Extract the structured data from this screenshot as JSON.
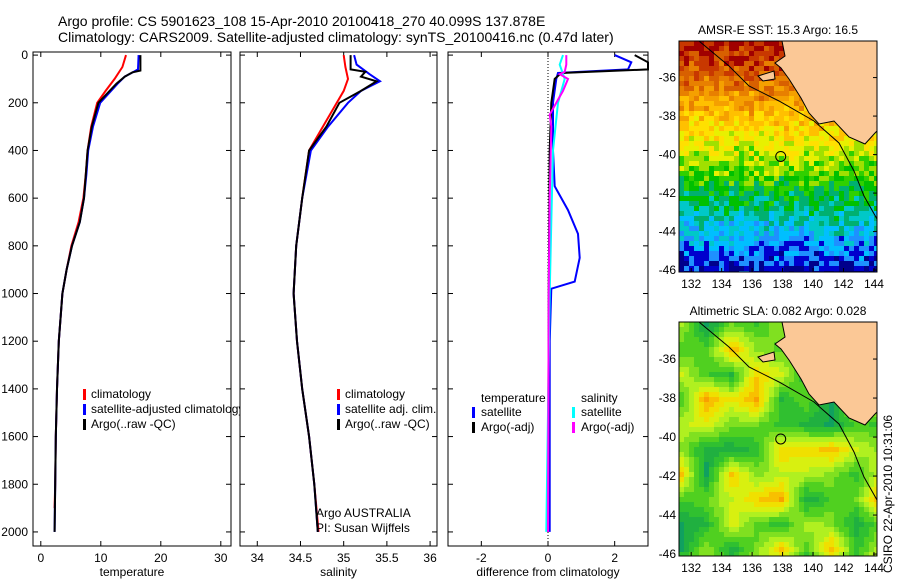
{
  "header": {
    "line1": "Argo profile: CS 5901623_108 15-Apr-2010 20100418_270 40.099S 137.878E",
    "line2": "Climatology: CARS2009. Satellite-adjusted climatology: synTS_20100416.nc (0.47d later)"
  },
  "side_label": "CSIRO 22-Apr-2010 10:31:06",
  "chart_data": [
    {
      "type": "line",
      "id": "temperature",
      "xlabel": "temperature",
      "ylabel": "pressure",
      "xlim": [
        -1.3,
        31.7
      ],
      "ylim": [
        2059,
        -13
      ],
      "y_reversed": true,
      "xticks": [
        "0",
        "10",
        "20",
        "30"
      ],
      "yticks": [
        "0",
        "200",
        "400",
        "600",
        "800",
        "1000",
        "1200",
        "1400",
        "1600",
        "1800",
        "2000"
      ],
      "legend": [
        "climatology",
        "satellite-adjusted climatology",
        "Argo(..raw -QC)"
      ],
      "series": [
        {
          "name": "climatology",
          "color": "#ff0000",
          "depth": [
            0,
            50,
            100,
            150,
            200,
            300,
            400,
            500,
            600,
            700,
            800,
            900,
            1000,
            1200,
            1400,
            1600,
            1800,
            1900
          ],
          "values": [
            14.2,
            13.6,
            12.3,
            10.8,
            9.4,
            8.4,
            7.8,
            7.5,
            7.1,
            6.3,
            5.1,
            4.3,
            3.6,
            3.0,
            2.7,
            2.5,
            2.4,
            2.3
          ]
        },
        {
          "name": "satellite-adjusted climatology",
          "color": "#0000ff",
          "depth": [
            0,
            60,
            70,
            90,
            120,
            200,
            300,
            400,
            500,
            600,
            700,
            800,
            900,
            1000,
            1200,
            1400,
            1600,
            1800,
            2000
          ],
          "values": [
            16.3,
            16.2,
            15.5,
            14.0,
            12.8,
            9.9,
            8.7,
            7.9,
            7.6,
            7.2,
            6.5,
            5.2,
            4.3,
            3.6,
            3.0,
            2.7,
            2.5,
            2.4,
            2.3
          ]
        },
        {
          "name": "Argo(..raw -QC)",
          "color": "#000000",
          "depth": [
            0,
            65,
            72,
            90,
            120,
            200,
            300,
            400,
            500,
            600,
            700,
            800,
            900,
            1000,
            1200,
            1400,
            1600,
            1800,
            2000
          ],
          "values": [
            16.6,
            16.6,
            15.3,
            14.0,
            12.6,
            9.6,
            8.5,
            7.8,
            7.5,
            7.2,
            6.5,
            5.2,
            4.3,
            3.6,
            3.0,
            2.7,
            2.5,
            2.4,
            2.3
          ]
        }
      ]
    },
    {
      "type": "line",
      "id": "salinity",
      "xlabel": "salinity",
      "xlim": [
        33.8,
        36.08
      ],
      "ylim": [
        2059,
        -13
      ],
      "y_reversed": true,
      "xticks": [
        "34",
        "34.5",
        "35",
        "35.5",
        "36"
      ],
      "legend": [
        "climatology",
        "satellite adj. clim.",
        "Argo(..raw -QC)"
      ],
      "annotation": [
        "Argo AUSTRALIA",
        "PI: Susan Wijffels"
      ],
      "series": [
        {
          "name": "climatology",
          "color": "#ff0000",
          "depth": [
            0,
            50,
            100,
            150,
            200,
            300,
            400,
            600,
            800,
            1000,
            1200,
            1400,
            1600,
            1800,
            2000
          ],
          "values": [
            35.0,
            35.02,
            35.05,
            35.0,
            34.92,
            34.76,
            34.6,
            34.52,
            34.45,
            34.42,
            34.46,
            34.52,
            34.6,
            34.66,
            34.71
          ]
        },
        {
          "name": "satellite adj. clim.",
          "color": "#0000ff",
          "depth": [
            0,
            40,
            80,
            110,
            150,
            200,
            300,
            400,
            600,
            800,
            1000,
            1200,
            1400,
            1600,
            1800,
            2000
          ],
          "values": [
            35.12,
            35.15,
            35.3,
            35.42,
            35.2,
            35.05,
            34.82,
            34.62,
            34.52,
            34.45,
            34.42,
            34.46,
            34.52,
            34.6,
            34.66,
            34.7
          ]
        },
        {
          "name": "Argo(..raw -QC)",
          "color": "#000000",
          "depth": [
            0,
            60,
            70,
            90,
            110,
            150,
            200,
            300,
            400,
            600,
            800,
            1000,
            1200,
            1400,
            1600,
            1800,
            2000
          ],
          "values": [
            35.08,
            35.08,
            35.25,
            35.2,
            35.38,
            35.2,
            34.95,
            34.8,
            34.6,
            34.52,
            34.45,
            34.42,
            34.46,
            34.52,
            34.6,
            34.66,
            34.7
          ]
        }
      ]
    },
    {
      "type": "line",
      "id": "difference",
      "xlabel": "difference from climatology",
      "xlim": [
        -3,
        3
      ],
      "ylim": [
        2059,
        -13
      ],
      "y_reversed": true,
      "xticks": [
        "-2",
        "0",
        "2"
      ],
      "legend_headers": [
        "temperature",
        "salinity"
      ],
      "legend": [
        "satellite",
        "Argo(-adj)",
        "satellite",
        "Argo(-adj)"
      ],
      "series": [
        {
          "name": "temperature satellite",
          "color": "#0000ff",
          "depth": [
            0,
            30,
            60,
            75,
            100,
            200,
            400,
            550,
            650,
            750,
            850,
            950,
            980,
            1200,
            2000
          ],
          "values": [
            2.0,
            2.5,
            2.4,
            0.3,
            0.25,
            0.15,
            0.15,
            0.2,
            0.6,
            0.9,
            0.95,
            0.8,
            0.1,
            0.05,
            0.05
          ]
        },
        {
          "name": "temperature Argo(-adj)",
          "color": "#000000",
          "depth": [
            0,
            30,
            60,
            75,
            100,
            200,
            400,
            1000,
            2000
          ],
          "values": [
            2.6,
            3.0,
            3.0,
            0.4,
            0.2,
            0.1,
            0.05,
            0.02,
            0.0
          ]
        },
        {
          "name": "salinity satellite",
          "color": "#00ffff",
          "depth": [
            0,
            40,
            100,
            200,
            400,
            700,
            1000,
            1500,
            2000
          ],
          "values": [
            0.45,
            0.35,
            0.5,
            0.3,
            0.15,
            0.1,
            0.05,
            0.0,
            -0.05
          ]
        },
        {
          "name": "salinity Argo(-adj)",
          "color": "#ff00ff",
          "depth": [
            0,
            40,
            70,
            80,
            100,
            150,
            200,
            250,
            300,
            600,
            1000,
            2000
          ],
          "values": [
            0.55,
            0.55,
            0.5,
            0.35,
            0.6,
            0.45,
            0.25,
            0.05,
            0.1,
            0.05,
            0.02,
            0.0
          ]
        }
      ]
    },
    {
      "type": "heatmap",
      "id": "sst_map",
      "title": "AMSR-E SST: 15.3 Argo: 16.5",
      "xlim": [
        131.2,
        144.2
      ],
      "ylim": [
        -46.1,
        -34.1
      ],
      "xticks": [
        "132",
        "134",
        "136",
        "138",
        "140",
        "142",
        "144"
      ],
      "yticks": [
        "-36",
        "-38",
        "-40",
        "-42",
        "-44",
        "-46"
      ],
      "marker": {
        "lon": 137.878,
        "lat": -40.099
      }
    },
    {
      "type": "heatmap",
      "id": "sla_map",
      "title": "Altimetric SLA: 0.082 Argo: 0.028",
      "xlim": [
        131.2,
        144.2
      ],
      "ylim": [
        -46.1,
        -34.1
      ],
      "xticks": [
        "132",
        "134",
        "136",
        "138",
        "140",
        "142",
        "144"
      ],
      "yticks": [
        "-36",
        "-38",
        "-40",
        "-42",
        "-44",
        "-46"
      ],
      "marker": {
        "lon": 137.878,
        "lat": -40.099
      }
    }
  ],
  "colors": {
    "land": "#fbc896"
  }
}
